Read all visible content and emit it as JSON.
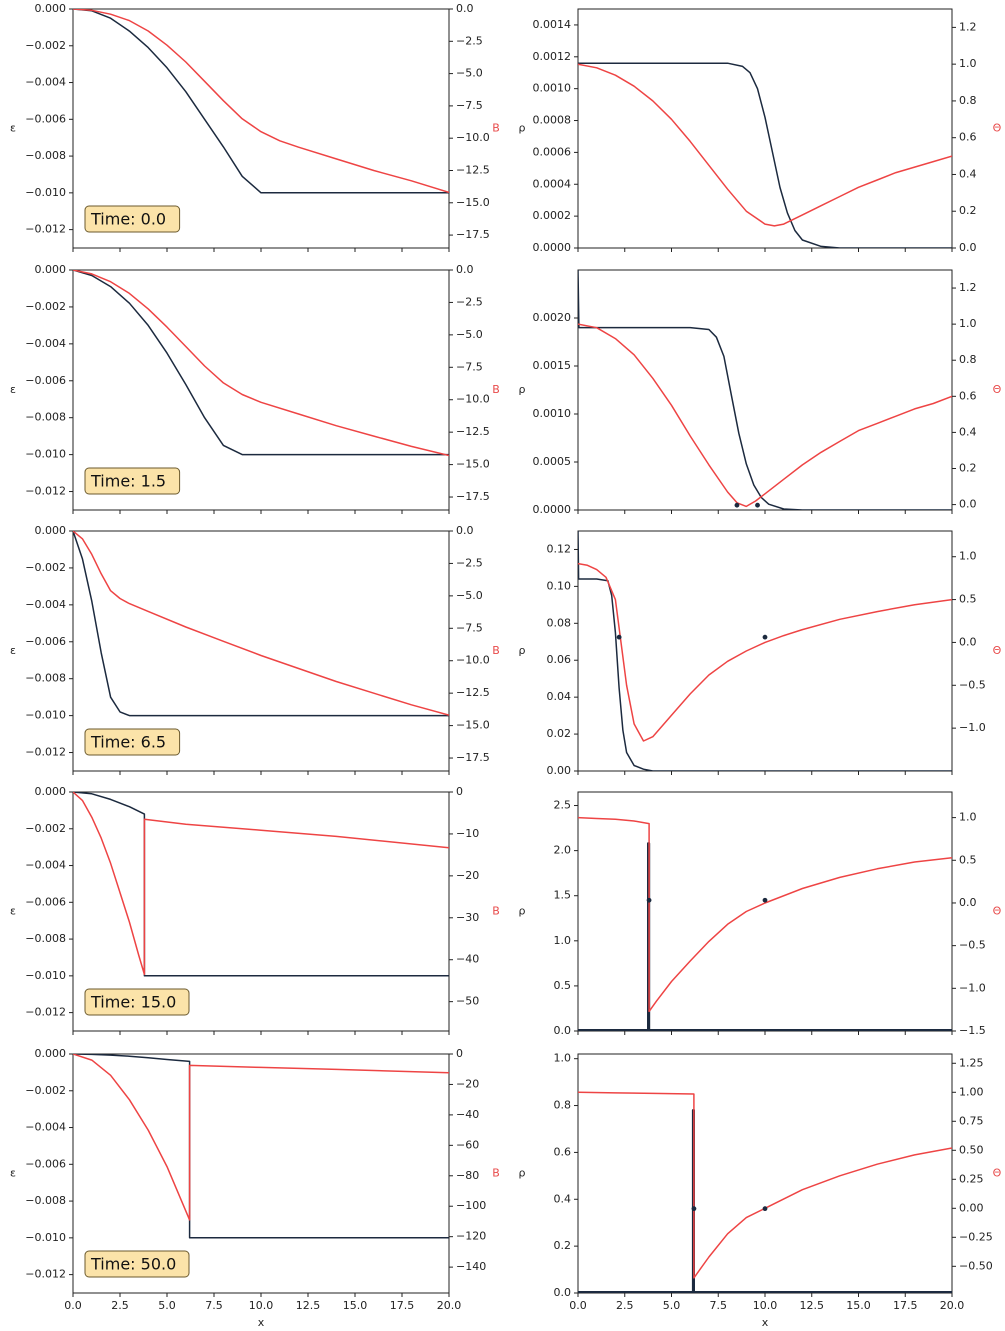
{
  "colors": {
    "left_axis": "#1c2a3f",
    "right_axis": "#ee4444",
    "time_box_fill": "#fbe3a9",
    "time_box_stroke": "#6b5a2e"
  },
  "xaxis": {
    "label": "x",
    "ticks": [
      "0.0",
      "2.5",
      "5.0",
      "7.5",
      "10.0",
      "12.5",
      "15.0",
      "17.5",
      "20.0"
    ]
  },
  "time_prefix": "Time: ",
  "chart_data": [
    {
      "id": "L0",
      "type": "line",
      "time": "0.0",
      "ylabel_left": "ε",
      "ylabel_right": "B",
      "xlim": [
        0,
        20
      ],
      "ylim_left": [
        -0.013,
        0.0
      ],
      "ylim_right": [
        -18.5,
        0
      ],
      "yticks_left": [
        "0.000",
        "−0.002",
        "−0.004",
        "−0.006",
        "−0.008",
        "−0.010",
        "−0.012"
      ],
      "yticks_right": [
        "0.0",
        "−2.5",
        "−5.0",
        "−7.5",
        "−10.0",
        "−12.5",
        "−15.0",
        "−17.5"
      ],
      "series": [
        {
          "axis": "left",
          "color": "#1c2a3f",
          "x": [
            0,
            1,
            2,
            3,
            4,
            5,
            6,
            7,
            8,
            9,
            10,
            11,
            12,
            20
          ],
          "y": [
            0,
            -0.0001,
            -0.0005,
            -0.0012,
            -0.0021,
            -0.0032,
            -0.0045,
            -0.006,
            -0.0075,
            -0.0091,
            -0.01,
            -0.01,
            -0.01,
            -0.01
          ]
        },
        {
          "axis": "right",
          "color": "#ee4444",
          "x": [
            0,
            1,
            2,
            3,
            4,
            5,
            6,
            7,
            8,
            9,
            10,
            11,
            12,
            14,
            16,
            18,
            20
          ],
          "y": [
            0,
            -0.1,
            -0.4,
            -0.9,
            -1.7,
            -2.8,
            -4.1,
            -5.6,
            -7.1,
            -8.5,
            -9.5,
            -10.2,
            -10.7,
            -11.6,
            -12.5,
            -13.3,
            -14.2
          ]
        }
      ]
    },
    {
      "id": "R0",
      "type": "line",
      "ylabel_left": "ρ",
      "ylabel_right": "Θ",
      "xlim": [
        0,
        20
      ],
      "ylim_left": [
        0,
        0.0015
      ],
      "ylim_right": [
        0,
        1.3
      ],
      "yticks_left": [
        "0.0000",
        "0.0002",
        "0.0004",
        "0.0006",
        "0.0008",
        "0.0010",
        "0.0012",
        "0.0014"
      ],
      "yticks_right": [
        "0.0",
        "0.2",
        "0.4",
        "0.6",
        "0.8",
        "1.0",
        "1.2"
      ],
      "series": [
        {
          "axis": "left",
          "color": "#1c2a3f",
          "x": [
            0,
            2,
            4,
            6,
            8,
            8.8,
            9.2,
            9.6,
            10,
            10.4,
            10.8,
            11.2,
            11.6,
            12,
            13,
            14,
            20
          ],
          "y": [
            0.00116,
            0.00116,
            0.00116,
            0.00116,
            0.00116,
            0.00114,
            0.0011,
            0.001,
            0.00082,
            0.0006,
            0.00038,
            0.00022,
            0.00011,
            5e-05,
            1e-05,
            0,
            0
          ]
        },
        {
          "axis": "right",
          "color": "#ee4444",
          "x": [
            0,
            1,
            2,
            3,
            4,
            5,
            6,
            7,
            8,
            9,
            10,
            10.5,
            11,
            12,
            13,
            14,
            15,
            16,
            17,
            18,
            19,
            20
          ],
          "y": [
            1.0,
            0.98,
            0.94,
            0.88,
            0.8,
            0.7,
            0.58,
            0.45,
            0.32,
            0.2,
            0.13,
            0.12,
            0.13,
            0.18,
            0.23,
            0.28,
            0.33,
            0.37,
            0.41,
            0.44,
            0.47,
            0.5
          ]
        }
      ]
    },
    {
      "id": "L1",
      "type": "line",
      "time": "1.5",
      "ylabel_left": "ε",
      "ylabel_right": "B",
      "xlim": [
        0,
        20
      ],
      "ylim_left": [
        -0.013,
        0.0
      ],
      "ylim_right": [
        -18.5,
        0
      ],
      "yticks_left": [
        "0.000",
        "−0.002",
        "−0.004",
        "−0.006",
        "−0.008",
        "−0.010",
        "−0.012"
      ],
      "yticks_right": [
        "0.0",
        "−2.5",
        "−5.0",
        "−7.5",
        "−10.0",
        "−12.5",
        "−15.0",
        "−17.5"
      ],
      "series": [
        {
          "axis": "left",
          "color": "#1c2a3f",
          "x": [
            0,
            1,
            2,
            3,
            4,
            5,
            6,
            7,
            8,
            9,
            10,
            20
          ],
          "y": [
            0,
            -0.0003,
            -0.0009,
            -0.0018,
            -0.003,
            -0.0045,
            -0.0062,
            -0.008,
            -0.0095,
            -0.01,
            -0.01,
            -0.01
          ]
        },
        {
          "axis": "right",
          "color": "#ee4444",
          "x": [
            0,
            1,
            2,
            3,
            4,
            5,
            6,
            7,
            8,
            9,
            10,
            12,
            14,
            16,
            18,
            20
          ],
          "y": [
            0,
            -0.3,
            -0.9,
            -1.8,
            -3.0,
            -4.4,
            -5.9,
            -7.4,
            -8.7,
            -9.6,
            -10.2,
            -11.1,
            -12.0,
            -12.8,
            -13.6,
            -14.3
          ]
        }
      ]
    },
    {
      "id": "R1",
      "type": "line",
      "ylabel_left": "ρ",
      "ylabel_right": "Θ",
      "xlim": [
        0,
        20
      ],
      "ylim_left": [
        0,
        0.0025
      ],
      "ylim_right": [
        -0.03,
        1.3
      ],
      "yticks_left": [
        "0.0000",
        "0.0005",
        "0.0010",
        "0.0015",
        "0.0020"
      ],
      "yticks_right": [
        "0.0",
        "0.2",
        "0.4",
        "0.6",
        "0.8",
        "1.0",
        "1.2"
      ],
      "markers": [
        {
          "x": 8.5,
          "y": 5e-05
        },
        {
          "x": 9.6,
          "y": 5e-05
        }
      ],
      "series": [
        {
          "axis": "left",
          "color": "#1c2a3f",
          "x": [
            0,
            0.05,
            0.15,
            1,
            2,
            4,
            6,
            7,
            7.4,
            7.8,
            8.2,
            8.6,
            9,
            9.4,
            9.8,
            10.2,
            11,
            12,
            20
          ],
          "y": [
            0.0025,
            0.0019,
            0.0019,
            0.0019,
            0.0019,
            0.0019,
            0.0019,
            0.00188,
            0.0018,
            0.0016,
            0.0012,
            0.0008,
            0.00048,
            0.00026,
            0.00013,
            6e-05,
            1e-05,
            0,
            0
          ]
        },
        {
          "axis": "right",
          "color": "#ee4444",
          "x": [
            0,
            1,
            2,
            3,
            4,
            5,
            6,
            7,
            8,
            8.5,
            9,
            9.5,
            10,
            11,
            12,
            13,
            14,
            15,
            16,
            17,
            18,
            19,
            20
          ],
          "y": [
            1.0,
            0.98,
            0.92,
            0.83,
            0.7,
            0.55,
            0.38,
            0.22,
            0.07,
            0.01,
            -0.01,
            0.02,
            0.06,
            0.14,
            0.22,
            0.29,
            0.35,
            0.41,
            0.45,
            0.49,
            0.53,
            0.56,
            0.6
          ]
        }
      ]
    },
    {
      "id": "L2",
      "type": "line",
      "time": "6.5",
      "ylabel_left": "ε",
      "ylabel_right": "B",
      "xlim": [
        0,
        20
      ],
      "ylim_left": [
        -0.013,
        0.0
      ],
      "ylim_right": [
        -18.5,
        0
      ],
      "yticks_left": [
        "0.000",
        "−0.002",
        "−0.004",
        "−0.006",
        "−0.008",
        "−0.010",
        "−0.012"
      ],
      "yticks_right": [
        "0.0",
        "−2.5",
        "−5.0",
        "−7.5",
        "−10.0",
        "−12.5",
        "−15.0",
        "−17.5"
      ],
      "series": [
        {
          "axis": "left",
          "color": "#1c2a3f",
          "x": [
            0,
            0.5,
            1,
            1.5,
            2,
            2.5,
            3,
            3.5,
            4,
            20
          ],
          "y": [
            0,
            -0.0015,
            -0.0038,
            -0.0066,
            -0.009,
            -0.0098,
            -0.01,
            -0.01,
            -0.01,
            -0.01
          ]
        },
        {
          "axis": "right",
          "color": "#ee4444",
          "x": [
            0,
            0.5,
            1,
            1.5,
            2,
            2.5,
            3,
            4,
            6,
            8,
            10,
            12,
            14,
            16,
            18,
            20
          ],
          "y": [
            0,
            -0.6,
            -1.8,
            -3.3,
            -4.6,
            -5.2,
            -5.6,
            -6.2,
            -7.4,
            -8.5,
            -9.6,
            -10.6,
            -11.6,
            -12.5,
            -13.4,
            -14.2
          ]
        }
      ]
    },
    {
      "id": "R2",
      "type": "line",
      "ylabel_left": "ρ",
      "ylabel_right": "Θ",
      "xlim": [
        0,
        20
      ],
      "ylim_left": [
        0,
        0.13
      ],
      "ylim_right": [
        -1.5,
        1.3
      ],
      "yticks_left": [
        "0.00",
        "0.02",
        "0.04",
        "0.06",
        "0.08",
        "0.10",
        "0.12"
      ],
      "yticks_right": [
        "−1.0",
        "−0.5",
        "0.0",
        "0.5",
        "1.0"
      ],
      "markers": [
        {
          "x": 2.2,
          "y": 0.0725
        },
        {
          "x": 10,
          "y": 0.0725
        }
      ],
      "series": [
        {
          "axis": "left",
          "color": "#1c2a3f",
          "x": [
            0,
            0.03,
            0.1,
            1,
            1.6,
            1.8,
            2,
            2.2,
            2.4,
            2.6,
            3,
            3.5,
            4,
            5,
            20
          ],
          "y": [
            0.13,
            0.104,
            0.104,
            0.104,
            0.103,
            0.095,
            0.075,
            0.045,
            0.022,
            0.01,
            0.003,
            0.001,
            0,
            0,
            0
          ]
        },
        {
          "axis": "right",
          "color": "#ee4444",
          "x": [
            0,
            0.5,
            1,
            1.5,
            2,
            2.3,
            2.6,
            3,
            3.5,
            4,
            5,
            6,
            7,
            8,
            9,
            10,
            11,
            12,
            14,
            16,
            18,
            20
          ],
          "y": [
            0.92,
            0.9,
            0.85,
            0.76,
            0.5,
            0.0,
            -0.5,
            -0.95,
            -1.15,
            -1.1,
            -0.85,
            -0.6,
            -0.38,
            -0.22,
            -0.1,
            0,
            0.08,
            0.15,
            0.27,
            0.36,
            0.44,
            0.5
          ]
        }
      ]
    },
    {
      "id": "L3",
      "type": "line",
      "time": "15.0",
      "ylabel_left": "ε",
      "ylabel_right": "B",
      "xlim": [
        0,
        20
      ],
      "ylim_left": [
        -0.013,
        0.0
      ],
      "ylim_right": [
        -57,
        0
      ],
      "yticks_left": [
        "0.000",
        "−0.002",
        "−0.004",
        "−0.006",
        "−0.008",
        "−0.010",
        "−0.012"
      ],
      "yticks_right": [
        "0",
        "−10",
        "−20",
        "−30",
        "−40",
        "−50"
      ],
      "series": [
        {
          "axis": "left",
          "color": "#1c2a3f",
          "x": [
            0,
            1,
            2,
            3,
            3.8,
            3.8,
            20
          ],
          "y": [
            0,
            -0.0001,
            -0.0004,
            -0.0008,
            -0.0012,
            -0.01,
            -0.01
          ]
        },
        {
          "axis": "right",
          "color": "#ee4444",
          "x": [
            0,
            0.5,
            1,
            1.5,
            2,
            2.5,
            3,
            3.5,
            3.8,
            3.8,
            6,
            10,
            14,
            20
          ],
          "y": [
            0,
            -2,
            -6,
            -11,
            -17,
            -24,
            -31,
            -39,
            -43.5,
            -6.5,
            -7.7,
            -9.1,
            -10.6,
            -13.3
          ]
        }
      ]
    },
    {
      "id": "R3",
      "type": "line",
      "ylabel_left": "ρ",
      "ylabel_right": "Θ",
      "xlim": [
        0,
        20
      ],
      "ylim_left": [
        0,
        2.65
      ],
      "ylim_right": [
        -1.5,
        1.3
      ],
      "yticks_left": [
        "0.0",
        "0.5",
        "1.0",
        "1.5",
        "2.0",
        "2.5"
      ],
      "yticks_right": [
        "−1.5",
        "−1.0",
        "−0.5",
        "0.0",
        "0.5",
        "1.0"
      ],
      "markers": [
        {
          "x": 3.8,
          "y": 1.45
        },
        {
          "x": 10,
          "y": 1.45
        }
      ],
      "series": [
        {
          "axis": "left",
          "color": "#1c2a3f",
          "x": [
            0,
            3.75,
            3.75,
            3.8,
            3.8,
            3.85,
            3.85,
            20
          ],
          "y": [
            0.01,
            0.01,
            2.08,
            2.08,
            0,
            0,
            0.01,
            0.01
          ]
        },
        {
          "axis": "right",
          "color": "#ee4444",
          "x": [
            0,
            1,
            2,
            3,
            3.8,
            3.8,
            4.2,
            5,
            6,
            7,
            8,
            9,
            10,
            12,
            14,
            16,
            18,
            20
          ],
          "y": [
            1.0,
            0.99,
            0.98,
            0.96,
            0.93,
            -1.27,
            -1.15,
            -0.92,
            -0.68,
            -0.45,
            -0.25,
            -0.1,
            0,
            0.17,
            0.3,
            0.4,
            0.48,
            0.53
          ]
        }
      ]
    },
    {
      "id": "L4",
      "type": "line",
      "time": "50.0",
      "ylabel_left": "ε",
      "ylabel_right": "B",
      "xlim": [
        0,
        20
      ],
      "ylim_left": [
        -0.013,
        0.0
      ],
      "ylim_right": [
        -157,
        0
      ],
      "yticks_left": [
        "0.000",
        "−0.002",
        "−0.004",
        "−0.006",
        "−0.008",
        "−0.010",
        "−0.012"
      ],
      "yticks_right": [
        "0",
        "−20",
        "−40",
        "−60",
        "−80",
        "−100",
        "−120",
        "−140"
      ],
      "series": [
        {
          "axis": "left",
          "color": "#1c2a3f",
          "x": [
            0,
            1,
            2,
            3,
            4,
            5,
            6.2,
            6.2,
            20
          ],
          "y": [
            0,
            -2e-05,
            -6e-05,
            -0.00012,
            -0.0002,
            -0.0003,
            -0.0004,
            -0.01,
            -0.01
          ]
        },
        {
          "axis": "right",
          "color": "#ee4444",
          "x": [
            0,
            1,
            2,
            3,
            4,
            5,
            6.2,
            6.2,
            10,
            14,
            20
          ],
          "y": [
            0,
            -4,
            -14,
            -30,
            -50,
            -74,
            -109,
            -7.5,
            -8.8,
            -10.1,
            -12.3
          ]
        }
      ]
    },
    {
      "id": "R4",
      "type": "line",
      "ylabel_left": "ρ",
      "ylabel_right": "Θ",
      "xlim": [
        0,
        20
      ],
      "ylim_left": [
        0,
        1.02
      ],
      "ylim_right": [
        -0.73,
        1.33
      ],
      "yticks_left": [
        "0.0",
        "0.2",
        "0.4",
        "0.6",
        "0.8",
        "1.0"
      ],
      "yticks_right": [
        "−0.50",
        "−0.25",
        "0.00",
        "0.25",
        "0.50",
        "0.75",
        "1.00",
        "1.25"
      ],
      "markers": [
        {
          "x": 6.2,
          "y": 0.36
        },
        {
          "x": 10,
          "y": 0.36
        }
      ],
      "series": [
        {
          "axis": "left",
          "color": "#1c2a3f",
          "x": [
            0,
            6.15,
            6.15,
            6.2,
            6.2,
            6.25,
            6.25,
            20
          ],
          "y": [
            0.004,
            0.004,
            0.78,
            0.78,
            0,
            0,
            0.004,
            0.004
          ]
        },
        {
          "axis": "right",
          "color": "#ee4444",
          "x": [
            0,
            2,
            4,
            6.2,
            6.2,
            7,
            8,
            9,
            10,
            12,
            14,
            16,
            18,
            20
          ],
          "y": [
            1.0,
            0.995,
            0.99,
            0.985,
            -0.6,
            -0.42,
            -0.22,
            -0.08,
            0,
            0.16,
            0.28,
            0.38,
            0.46,
            0.52
          ]
        }
      ]
    }
  ]
}
